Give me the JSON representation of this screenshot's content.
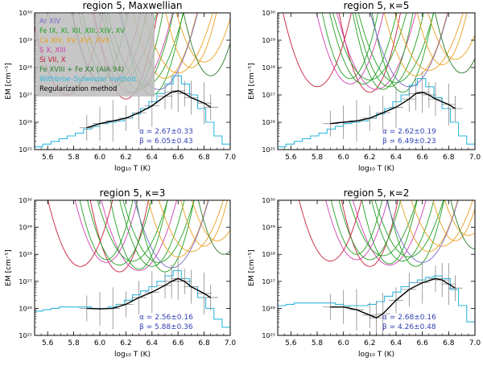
{
  "colors": {
    "ar": "#7b68c8",
    "fe_mid": "#22a022",
    "ca": "#e8a020",
    "s": "#d040b0",
    "si": "#c81e3c",
    "fe_hot": "#2a7a2a",
    "withbroe": "#30b8e0",
    "reg": "#000000",
    "errbar": "#888888",
    "alphabeta": "#2f3fb0",
    "legend_bg": "#bcbcbc"
  },
  "legend": [
    {
      "label": "Ar XIV",
      "color_key": "ar"
    },
    {
      "label": "Fe IX, XI, XII, XIII, XIV, XV",
      "color_key": "fe_mid"
    },
    {
      "label": "Ca XIV, XV, XVI, XVII",
      "color_key": "ca"
    },
    {
      "label": "S X, XIII",
      "color_key": "s"
    },
    {
      "label": "Si VII, X",
      "color_key": "si"
    },
    {
      "label": "Fe XVIII + Fe XX (AIA 94)",
      "color_key": "fe_hot"
    },
    {
      "label": "Withbroe–Sylwester method",
      "color_key": "withbroe"
    },
    {
      "label": "Regularization method",
      "color_key": "reg"
    }
  ],
  "chart_data": [
    {
      "type": "line",
      "title": "region 5,    Maxwellian",
      "xlabel": "log₁₀ T (K)",
      "ylabel": "EM [cm⁻⁵]",
      "xlim": [
        5.5,
        7.0
      ],
      "ylim_log10": [
        25,
        30
      ],
      "xticks": [
        "5.6",
        "5.8",
        "6.0",
        "6.2",
        "6.4",
        "6.6",
        "6.8",
        "7.0"
      ],
      "yticks": [
        "10²⁵",
        "10²⁶",
        "10²⁷",
        "10²⁸",
        "10²⁹",
        "10³⁰"
      ],
      "alpha": "α = 2.67±0.33",
      "beta": "β = 6.05±0.43",
      "reg_x": [
        5.9,
        6.0,
        6.1,
        6.2,
        6.3,
        6.4,
        6.5,
        6.55,
        6.6,
        6.65,
        6.7,
        6.8,
        6.85
      ],
      "reg_log_em": [
        25.8,
        25.95,
        26.05,
        26.15,
        26.35,
        26.6,
        26.95,
        27.1,
        27.15,
        27.05,
        26.9,
        26.7,
        26.55
      ],
      "withbroe_log_em": [
        25.1,
        25.2,
        25.3,
        25.4,
        25.5,
        25.6,
        25.75,
        25.85,
        25.95,
        26.0,
        26.05,
        26.15,
        26.3,
        26.5,
        26.75,
        27.05,
        27.4,
        27.7,
        27.4,
        27.0,
        26.5,
        26.0,
        25.5,
        25.2
      ],
      "em_loci": [
        {
          "x0": 6.2,
          "y0": 26.85,
          "c": "si"
        },
        {
          "x0": 6.05,
          "y0": 27.25,
          "c": "s"
        },
        {
          "x0": 6.25,
          "y0": 27.05,
          "c": "s"
        },
        {
          "x0": 6.0,
          "y0": 27.5,
          "c": "fe_mid"
        },
        {
          "x0": 6.1,
          "y0": 27.3,
          "c": "fe_mid"
        },
        {
          "x0": 6.15,
          "y0": 27.45,
          "c": "fe_mid"
        },
        {
          "x0": 6.25,
          "y0": 27.1,
          "c": "fe_mid"
        },
        {
          "x0": 6.3,
          "y0": 27.2,
          "c": "fe_mid"
        },
        {
          "x0": 6.35,
          "y0": 27.35,
          "c": "fe_mid"
        },
        {
          "x0": 6.4,
          "y0": 27.0,
          "c": "fe_mid"
        },
        {
          "x0": 6.5,
          "y0": 27.6,
          "c": "ca"
        },
        {
          "x0": 6.6,
          "y0": 27.8,
          "c": "ca"
        },
        {
          "x0": 6.7,
          "y0": 28.0,
          "c": "ca"
        },
        {
          "x0": 6.8,
          "y0": 28.2,
          "c": "ca"
        },
        {
          "x0": 6.45,
          "y0": 27.2,
          "c": "ar"
        },
        {
          "x0": 6.85,
          "y0": 27.7,
          "c": "fe_hot"
        },
        {
          "x0": 5.75,
          "y0": 27.0,
          "c": "si"
        }
      ]
    },
    {
      "type": "line",
      "title": "region 5,    κ=5",
      "xlabel": "log₁₀ T (K)",
      "ylabel": "EM [cm⁻⁵]",
      "xlim": [
        5.5,
        7.0
      ],
      "ylim_log10": [
        25,
        30
      ],
      "xticks": [
        "5.6",
        "5.8",
        "6.0",
        "6.2",
        "6.4",
        "6.6",
        "6.8",
        "7.0"
      ],
      "yticks": [
        "10²⁵",
        "10²⁶",
        "10²⁷",
        "10²⁸",
        "10²⁹",
        "10³⁰"
      ],
      "alpha": "α = 2.62±0.19",
      "beta": "β = 6.49±0.23",
      "reg_x": [
        5.9,
        6.0,
        6.1,
        6.2,
        6.3,
        6.4,
        6.5,
        6.55,
        6.6,
        6.65,
        6.7,
        6.8,
        6.85
      ],
      "reg_log_em": [
        25.95,
        26.0,
        26.05,
        26.15,
        26.35,
        26.55,
        26.85,
        27.05,
        27.1,
        27.0,
        26.85,
        26.65,
        26.5
      ],
      "withbroe_log_em": [
        25.1,
        25.2,
        25.3,
        25.4,
        25.5,
        25.6,
        25.75,
        25.85,
        25.95,
        26.0,
        26.05,
        26.15,
        26.3,
        26.5,
        26.75,
        27.0,
        27.35,
        27.6,
        27.3,
        26.9,
        26.5,
        26.0,
        25.5,
        25.2
      ],
      "em_loci": [
        {
          "x0": 6.2,
          "y0": 27.1,
          "c": "si"
        },
        {
          "x0": 6.05,
          "y0": 27.4,
          "c": "s"
        },
        {
          "x0": 6.25,
          "y0": 27.2,
          "c": "s"
        },
        {
          "x0": 6.05,
          "y0": 27.6,
          "c": "fe_mid"
        },
        {
          "x0": 6.15,
          "y0": 27.4,
          "c": "fe_mid"
        },
        {
          "x0": 6.2,
          "y0": 27.55,
          "c": "fe_mid"
        },
        {
          "x0": 6.3,
          "y0": 27.2,
          "c": "fe_mid"
        },
        {
          "x0": 6.35,
          "y0": 27.3,
          "c": "fe_mid"
        },
        {
          "x0": 6.4,
          "y0": 27.45,
          "c": "fe_mid"
        },
        {
          "x0": 6.45,
          "y0": 27.1,
          "c": "fe_mid"
        },
        {
          "x0": 6.55,
          "y0": 27.7,
          "c": "ca"
        },
        {
          "x0": 6.65,
          "y0": 27.9,
          "c": "ca"
        },
        {
          "x0": 6.75,
          "y0": 28.1,
          "c": "ca"
        },
        {
          "x0": 6.85,
          "y0": 28.3,
          "c": "ca"
        },
        {
          "x0": 6.5,
          "y0": 27.3,
          "c": "ar"
        },
        {
          "x0": 6.9,
          "y0": 27.8,
          "c": "fe_hot"
        },
        {
          "x0": 5.8,
          "y0": 27.3,
          "c": "si"
        }
      ]
    },
    {
      "type": "line",
      "title": "region 5,    κ=3",
      "xlabel": "log₁₀ T (K)",
      "ylabel": "EM [cm⁻⁵]",
      "xlim": [
        5.5,
        7.0
      ],
      "ylim_log10": [
        25,
        30
      ],
      "xticks": [
        "5.6",
        "5.8",
        "6.0",
        "6.2",
        "6.4",
        "6.6",
        "6.8",
        "7.0"
      ],
      "yticks": [
        "10²⁵",
        "10²⁶",
        "10²⁷",
        "10²⁸",
        "10²⁹",
        "10³⁰"
      ],
      "alpha": "α = 2.56±0.16",
      "beta": "β = 5.88±0.36",
      "reg_x": [
        5.9,
        6.0,
        6.1,
        6.2,
        6.3,
        6.4,
        6.5,
        6.55,
        6.6,
        6.65,
        6.7,
        6.8,
        6.85
      ],
      "reg_log_em": [
        26.0,
        25.98,
        26.0,
        26.15,
        26.4,
        26.6,
        26.85,
        27.0,
        27.1,
        27.0,
        26.8,
        26.55,
        26.4
      ],
      "withbroe_log_em": [
        25.9,
        25.95,
        26.0,
        26.05,
        26.05,
        26.05,
        26.05,
        26.0,
        26.0,
        26.05,
        26.15,
        26.3,
        26.5,
        26.65,
        26.8,
        27.0,
        27.2,
        27.4,
        27.1,
        26.8,
        26.4,
        26.0,
        25.6,
        25.3
      ],
      "em_loci": [
        {
          "x0": 6.15,
          "y0": 27.35,
          "c": "si"
        },
        {
          "x0": 6.05,
          "y0": 27.7,
          "c": "s"
        },
        {
          "x0": 6.3,
          "y0": 27.4,
          "c": "s"
        },
        {
          "x0": 6.05,
          "y0": 27.8,
          "c": "fe_mid"
        },
        {
          "x0": 6.15,
          "y0": 27.6,
          "c": "fe_mid"
        },
        {
          "x0": 6.25,
          "y0": 27.75,
          "c": "fe_mid"
        },
        {
          "x0": 6.3,
          "y0": 27.45,
          "c": "fe_mid"
        },
        {
          "x0": 6.4,
          "y0": 27.55,
          "c": "fe_mid"
        },
        {
          "x0": 6.45,
          "y0": 27.7,
          "c": "fe_mid"
        },
        {
          "x0": 6.5,
          "y0": 27.35,
          "c": "fe_mid"
        },
        {
          "x0": 6.6,
          "y0": 27.9,
          "c": "ca"
        },
        {
          "x0": 6.7,
          "y0": 28.1,
          "c": "ca"
        },
        {
          "x0": 6.8,
          "y0": 28.3,
          "c": "ca"
        },
        {
          "x0": 6.9,
          "y0": 28.5,
          "c": "ca"
        },
        {
          "x0": 6.55,
          "y0": 27.5,
          "c": "ar"
        },
        {
          "x0": 6.95,
          "y0": 28.0,
          "c": "fe_hot"
        },
        {
          "x0": 5.85,
          "y0": 27.55,
          "c": "si"
        }
      ]
    },
    {
      "type": "line",
      "title": "region 5,    κ=2",
      "xlabel": "log₁₀ T (K)",
      "ylabel": "EM [cm⁻⁵]",
      "xlim": [
        5.5,
        7.0
      ],
      "ylim_log10": [
        25,
        30
      ],
      "xticks": [
        "5.6",
        "5.8",
        "6.0",
        "6.2",
        "6.4",
        "6.6",
        "6.8",
        "7.0"
      ],
      "yticks": [
        "10²⁵",
        "10²⁶",
        "10²⁷",
        "10²⁸",
        "10²⁹",
        "10³⁰"
      ],
      "alpha": "α = 2.68±0.16",
      "beta": "β = 4.26±0.48",
      "reg_x": [
        5.9,
        6.0,
        6.1,
        6.2,
        6.25,
        6.3,
        6.4,
        6.5,
        6.6,
        6.7,
        6.75,
        6.8,
        6.85
      ],
      "reg_log_em": [
        26.05,
        26.05,
        25.95,
        25.75,
        25.65,
        25.8,
        26.3,
        26.7,
        26.95,
        27.1,
        27.05,
        26.9,
        26.75
      ],
      "withbroe_log_em": [
        26.1,
        26.15,
        26.2,
        26.2,
        26.2,
        26.2,
        26.2,
        26.15,
        26.1,
        26.1,
        26.1,
        26.15,
        26.25,
        26.45,
        26.6,
        26.8,
        26.95,
        27.05,
        27.15,
        27.2,
        27.1,
        26.7,
        26.1,
        25.5
      ],
      "em_loci": [
        {
          "x0": 6.2,
          "y0": 27.55,
          "c": "si"
        },
        {
          "x0": 6.1,
          "y0": 27.8,
          "c": "s"
        },
        {
          "x0": 6.35,
          "y0": 27.6,
          "c": "s"
        },
        {
          "x0": 6.1,
          "y0": 28.0,
          "c": "fe_mid"
        },
        {
          "x0": 6.2,
          "y0": 27.8,
          "c": "fe_mid"
        },
        {
          "x0": 6.3,
          "y0": 27.95,
          "c": "fe_mid"
        },
        {
          "x0": 6.35,
          "y0": 27.65,
          "c": "fe_mid"
        },
        {
          "x0": 6.45,
          "y0": 27.75,
          "c": "fe_mid"
        },
        {
          "x0": 6.5,
          "y0": 27.9,
          "c": "fe_mid"
        },
        {
          "x0": 6.55,
          "y0": 27.55,
          "c": "fe_mid"
        },
        {
          "x0": 6.65,
          "y0": 28.1,
          "c": "ca"
        },
        {
          "x0": 6.75,
          "y0": 28.3,
          "c": "ca"
        },
        {
          "x0": 6.85,
          "y0": 28.5,
          "c": "ca"
        },
        {
          "x0": 6.95,
          "y0": 28.7,
          "c": "ca"
        },
        {
          "x0": 6.6,
          "y0": 27.7,
          "c": "ar"
        },
        {
          "x0": 7.0,
          "y0": 28.2,
          "c": "fe_hot"
        },
        {
          "x0": 5.9,
          "y0": 27.75,
          "c": "si"
        }
      ]
    }
  ]
}
